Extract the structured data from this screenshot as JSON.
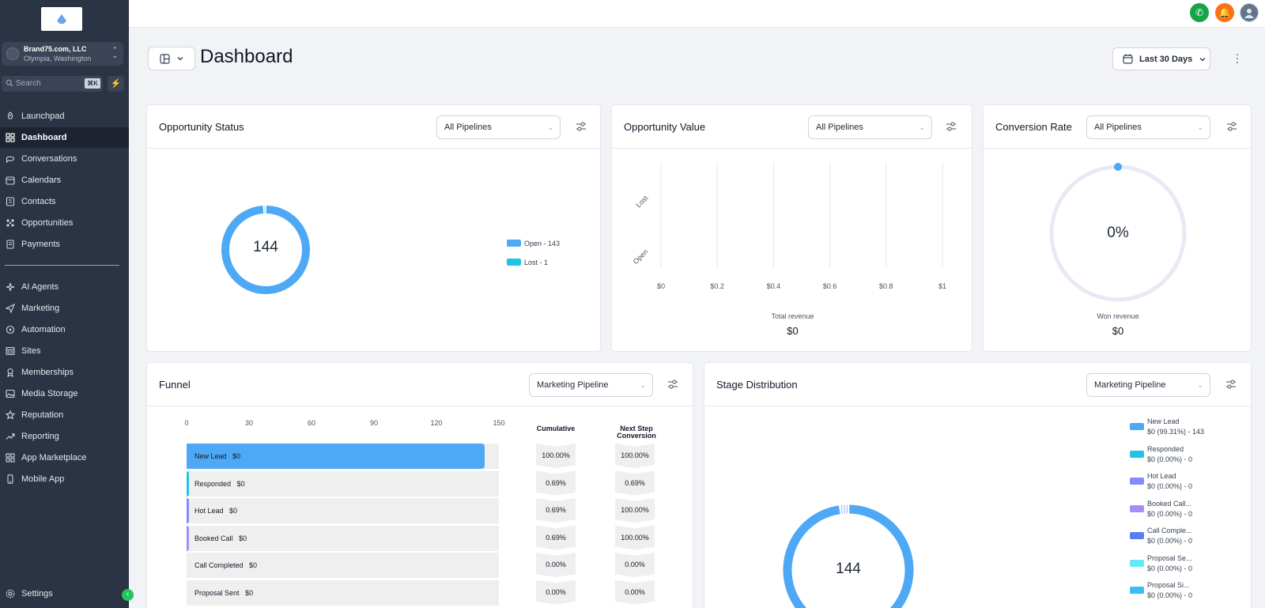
{
  "account": {
    "name": "Brand75.com, LLC",
    "location": "Olympia, Washington"
  },
  "search": {
    "placeholder": "Search",
    "shortcut": "⌘K"
  },
  "nav": {
    "group1": [
      {
        "label": "Launchpad",
        "icon": "rocket-icon"
      },
      {
        "label": "Dashboard",
        "icon": "dashboard-icon",
        "active": true
      },
      {
        "label": "Conversations",
        "icon": "chat-icon"
      },
      {
        "label": "Calendars",
        "icon": "calendar-icon"
      },
      {
        "label": "Contacts",
        "icon": "contacts-icon"
      },
      {
        "label": "Opportunities",
        "icon": "opportunities-icon"
      },
      {
        "label": "Payments",
        "icon": "payments-icon"
      }
    ],
    "group2": [
      {
        "label": "AI Agents",
        "icon": "ai-agents-icon"
      },
      {
        "label": "Marketing",
        "icon": "send-icon"
      },
      {
        "label": "Automation",
        "icon": "automation-icon"
      },
      {
        "label": "Sites",
        "icon": "sites-icon"
      },
      {
        "label": "Memberships",
        "icon": "membership-icon"
      },
      {
        "label": "Media Storage",
        "icon": "image-icon"
      },
      {
        "label": "Reputation",
        "icon": "star-icon"
      },
      {
        "label": "Reporting",
        "icon": "trend-icon"
      },
      {
        "label": "App Marketplace",
        "icon": "grid-icon"
      },
      {
        "label": "Mobile App",
        "icon": "mobile-icon"
      }
    ],
    "settings": "Settings"
  },
  "header": {
    "title": "Dashboard",
    "date_range": "Last 30 Days"
  },
  "opportunity_status": {
    "title": "Opportunity Status",
    "pipeline": "All Pipelines",
    "total": "144",
    "legend": [
      {
        "label": "Open - 143",
        "color": "#4da8f5",
        "value": 143
      },
      {
        "label": "Lost - 1",
        "color": "#22c3e6",
        "value": 1
      }
    ]
  },
  "opportunity_value": {
    "title": "Opportunity Value",
    "pipeline": "All Pipelines",
    "categories": [
      "Lost",
      "Open"
    ],
    "x_ticks": [
      "$0",
      "$0.2",
      "$0.4",
      "$0.6",
      "$0.8",
      "$1"
    ],
    "caption": "Total revenue",
    "total": "$0"
  },
  "conversion_rate": {
    "title": "Conversion Rate",
    "pipeline": "All Pipelines",
    "value": "0%",
    "caption": "Won revenue",
    "total": "$0"
  },
  "funnel": {
    "title": "Funnel",
    "pipeline": "Marketing Pipeline",
    "x_ticks": [
      "0",
      "30",
      "60",
      "90",
      "120",
      "150"
    ],
    "cumulative_header": "Cumulative",
    "next_step_header_1": "Next Step",
    "next_step_header_2": "Conversion",
    "stages": [
      {
        "label": "New Lead",
        "amount": "$0",
        "count": 143,
        "color": "#4da8f5",
        "cumulative": "100.00%",
        "next": "100.00%"
      },
      {
        "label": "Responded",
        "amount": "$0",
        "count": 1,
        "color": "#22c3e6",
        "cumulative": "0.69%",
        "next": "0.69%"
      },
      {
        "label": "Hot Lead",
        "amount": "$0",
        "count": 1,
        "color": "#818cf8",
        "cumulative": "0.69%",
        "next": "100.00%"
      },
      {
        "label": "Booked Call",
        "amount": "$0",
        "count": 1,
        "color": "#a78bfa",
        "cumulative": "0.69%",
        "next": "100.00%"
      },
      {
        "label": "Call Completed",
        "amount": "$0",
        "count": 0,
        "color": "#6366f1",
        "cumulative": "0.00%",
        "next": "0.00%"
      },
      {
        "label": "Proposal Sent",
        "amount": "$0",
        "count": 0,
        "color": "#5eead4",
        "cumulative": "0.00%",
        "next": "0.00%"
      }
    ]
  },
  "stage_distribution": {
    "title": "Stage Distribution",
    "pipeline": "Marketing Pipeline",
    "total": "144",
    "legend": [
      {
        "name": "New Lead",
        "detail": "$0 (99.31%) - 143",
        "color": "#4da8f5"
      },
      {
        "name": "Responded",
        "detail": "$0 (0.00%) - 0",
        "color": "#22c3e6"
      },
      {
        "name": "Hot Lead",
        "detail": "$0 (0.00%) - 0",
        "color": "#818cf8"
      },
      {
        "name": "Booked Call...",
        "detail": "$0 (0.00%) - 0",
        "color": "#a78bfa"
      },
      {
        "name": "Call Comple...",
        "detail": "$0 (0.00%) - 0",
        "color": "#5b7cf0"
      },
      {
        "name": "Proposal Se...",
        "detail": "$0 (0.00%) - 0",
        "color": "#67e8f9"
      },
      {
        "name": "Proposal Si...",
        "detail": "$0 (0.00%) - 0",
        "color": "#38bdf8"
      }
    ]
  }
}
